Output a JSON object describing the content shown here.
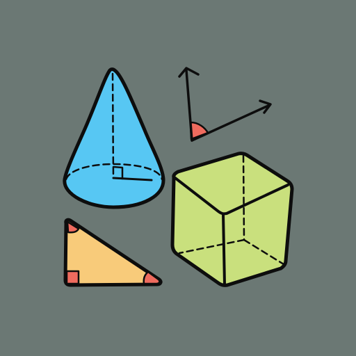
{
  "canvas": {
    "background": "#6b7874"
  },
  "shapes": [
    {
      "name": "cone",
      "fill": "#57c7f3",
      "icon": "cone-icon"
    },
    {
      "name": "angle",
      "mark_color": "#ef6b5e",
      "icon": "angle-icon"
    },
    {
      "name": "cube",
      "fill": "#c9e07d",
      "icon": "cube-icon"
    },
    {
      "name": "right-triangle",
      "fill": "#f8cb7a",
      "mark_color": "#ef6b5e",
      "icon": "right-triangle-icon"
    }
  ],
  "ink_color": "#0d0d0d"
}
